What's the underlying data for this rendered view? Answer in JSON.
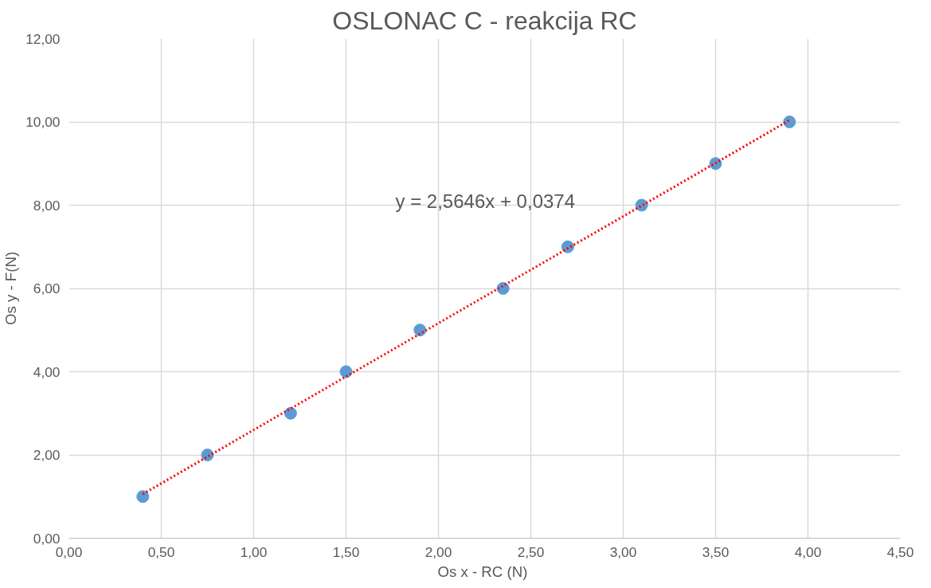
{
  "chart_data": {
    "type": "scatter",
    "title": "OSLONAC C - reakcija RC",
    "xlabel": "Os x -  RC (N)",
    "ylabel": "Os y - F(N)",
    "x": [
      0.4,
      0.75,
      1.2,
      1.5,
      1.9,
      2.35,
      2.7,
      3.1,
      3.5,
      3.9
    ],
    "series": [
      {
        "color": "#5b9bd5",
        "values": [
          1,
          2,
          3,
          4,
          5,
          6,
          7,
          8,
          9,
          10
        ],
        "marker": "circle"
      },
      {
        "type": "line",
        "color": "#ff0000",
        "x": [
          0.4,
          3.9
        ],
        "values": [
          1.06,
          10.04
        ],
        "line_style": "dotted",
        "marker": "none"
      }
    ],
    "annotations": [
      "y = 2,5646x + 0,0374"
    ],
    "xlim": [
      0,
      4.5
    ],
    "ylim": [
      0,
      12
    ],
    "xticks": [
      {
        "value": 0,
        "label": "0,00"
      },
      {
        "value": 0.5,
        "label": "0,50"
      },
      {
        "value": 1,
        "label": "1,00"
      },
      {
        "value": 1.5,
        "label": "1,50"
      },
      {
        "value": 2,
        "label": "2,00"
      },
      {
        "value": 2.5,
        "label": "2,50"
      },
      {
        "value": 3,
        "label": "3,00"
      },
      {
        "value": 3.5,
        "label": "3,50"
      },
      {
        "value": 4,
        "label": "4,00"
      },
      {
        "value": 4.5,
        "label": "4,50"
      }
    ],
    "yticks": [
      {
        "value": 0,
        "label": "0,00"
      },
      {
        "value": 2,
        "label": "2,00"
      },
      {
        "value": 4,
        "label": "4,00"
      },
      {
        "value": 6,
        "label": "6,00"
      },
      {
        "value": 8,
        "label": "8,00"
      },
      {
        "value": 10,
        "label": "10,00"
      },
      {
        "value": 12,
        "label": "12,00"
      }
    ],
    "grid": true
  }
}
